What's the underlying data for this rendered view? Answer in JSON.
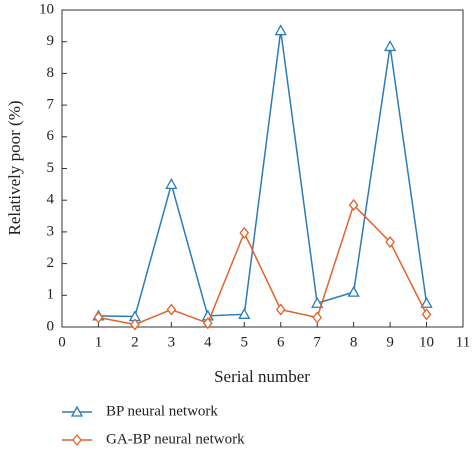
{
  "chart_data": {
    "type": "line",
    "x_label": "Serial number",
    "y_label": "Relatively poor (%)",
    "x": [
      1,
      2,
      3,
      4,
      5,
      6,
      7,
      8,
      9,
      10
    ],
    "series": [
      {
        "name": "BP neural network",
        "color": "#2b7bb9",
        "marker": "triangle",
        "values": [
          0.35,
          0.33,
          4.5,
          0.35,
          0.4,
          9.35,
          0.75,
          1.1,
          8.85,
          0.75
        ]
      },
      {
        "name": "GA-BP neural network",
        "color": "#e0632b",
        "marker": "diamond",
        "values": [
          0.3,
          0.08,
          0.55,
          0.12,
          2.97,
          0.55,
          0.3,
          3.85,
          2.68,
          0.4
        ]
      }
    ],
    "xlim": [
      0,
      11
    ],
    "xticks": [
      0,
      1,
      2,
      3,
      4,
      5,
      6,
      7,
      8,
      9,
      10,
      11
    ],
    "ylim": [
      0,
      10
    ],
    "yticks": [
      0,
      1,
      2,
      3,
      4,
      5,
      6,
      7,
      8,
      9,
      10
    ],
    "legend": "bottom"
  }
}
